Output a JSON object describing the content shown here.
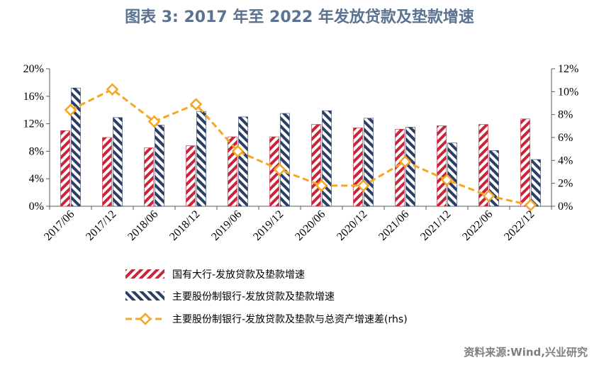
{
  "title": "图表 3:   2017 年至 2022 年发放贷款及垫款增速",
  "source": "资料来源:Wind,兴业研究",
  "colors": {
    "title": "#5b7390",
    "state_banks": "#c8243a",
    "joint_stock_banks": "#2b3e66",
    "spread": "#f5a623",
    "axis": "#595959",
    "source": "#7f7f7f"
  },
  "chart_data": {
    "type": "bar",
    "categories": [
      "2017/06",
      "2017/12",
      "2018/06",
      "2018/12",
      "2019/06",
      "2019/12",
      "2020/06",
      "2020/12",
      "2021/06",
      "2021/12",
      "2022/06",
      "2022/12"
    ],
    "left_axis": {
      "ylim": [
        0,
        20
      ],
      "ticks": [
        "0%",
        "4%",
        "8%",
        "12%",
        "16%",
        "20%"
      ],
      "tick_values": [
        0,
        4,
        8,
        12,
        16,
        20
      ]
    },
    "right_axis": {
      "ylim": [
        0,
        12
      ],
      "ticks": [
        "0%",
        "2%",
        "4%",
        "6%",
        "8%",
        "10%",
        "12%"
      ],
      "tick_values": [
        0,
        2,
        4,
        6,
        8,
        10,
        12
      ]
    },
    "grid": false,
    "legend_position": "bottom",
    "series": [
      {
        "name": "国有大行-发放贷款及垫款增速",
        "type": "bar",
        "axis": "left",
        "values": [
          11.0,
          10.0,
          8.5,
          8.8,
          10.1,
          10.1,
          11.9,
          11.4,
          11.2,
          11.7,
          11.9,
          12.7
        ]
      },
      {
        "name": "主要股份制银行-发放贷款及垫款增速",
        "type": "bar",
        "axis": "left",
        "values": [
          17.2,
          12.9,
          11.8,
          13.8,
          13.0,
          13.5,
          13.9,
          12.8,
          11.5,
          9.2,
          8.1,
          6.8
        ]
      },
      {
        "name": "主要股份制银行-发放贷款及垫款与总资产增速差(rhs)",
        "type": "line",
        "axis": "right",
        "values": [
          8.4,
          10.2,
          7.4,
          8.9,
          4.8,
          3.2,
          1.8,
          1.8,
          3.9,
          2.3,
          0.9,
          0.1
        ]
      }
    ]
  }
}
